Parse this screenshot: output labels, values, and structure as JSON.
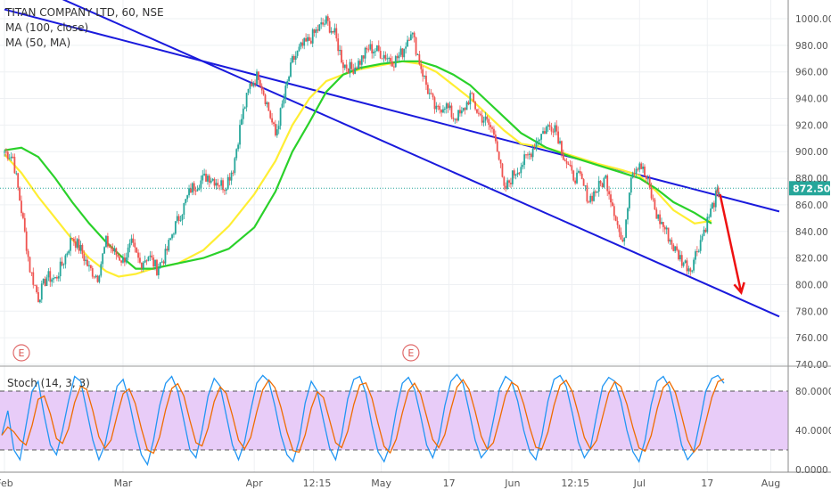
{
  "chart_data": [
    {
      "type": "candlestick",
      "title": "TITAN COMPANY LTD, 60, NSE",
      "indicators": [
        "MA (100, close)",
        "MA (50, MA)"
      ],
      "price_axis": {
        "ticks": [
          "1000.00",
          "980.00",
          "960.00",
          "940.00",
          "920.00",
          "900.00",
          "880.00",
          "860.00",
          "840.00",
          "820.00",
          "800.00",
          "780.00",
          "760.00",
          "740.00"
        ],
        "range": [
          736,
          1010
        ]
      },
      "time_axis": {
        "ticks": [
          "Feb",
          "Mar",
          "Apr",
          "12:15",
          "May",
          "17",
          "Jun",
          "12:15",
          "Jul",
          "17",
          "Aug"
        ]
      },
      "last_price_label": "872.50",
      "events": [
        "E",
        "E"
      ],
      "colors": {
        "up": "#26a69a",
        "down": "#ef5350",
        "ma100": "#2ad12a",
        "ma50": "#ffee33",
        "channel": "#1a1adc",
        "arrow": "#ee1111",
        "price_line": "#26a69a"
      },
      "price_path": [
        [
          "2019-02-01",
          900
        ],
        [
          "2019-02-03",
          896
        ],
        [
          "2019-02-05",
          856
        ],
        [
          "2019-02-07",
          812
        ],
        [
          "2019-02-09",
          790
        ],
        [
          "2019-02-11",
          806
        ],
        [
          "2019-02-13",
          804
        ],
        [
          "2019-02-15",
          818
        ],
        [
          "2019-02-17",
          836
        ],
        [
          "2019-02-19",
          826
        ],
        [
          "2019-02-21",
          812
        ],
        [
          "2019-02-23",
          806
        ],
        [
          "2019-02-25",
          832
        ],
        [
          "2019-02-27",
          824
        ],
        [
          "2019-03-01",
          818
        ],
        [
          "2019-03-03",
          830
        ],
        [
          "2019-03-05",
          816
        ],
        [
          "2019-03-07",
          822
        ],
        [
          "2019-03-09",
          812
        ],
        [
          "2019-03-11",
          822
        ],
        [
          "2019-03-13",
          842
        ],
        [
          "2019-03-15",
          856
        ],
        [
          "2019-03-17",
          872
        ],
        [
          "2019-03-19",
          877
        ],
        [
          "2019-03-21",
          882
        ],
        [
          "2019-03-23",
          878
        ],
        [
          "2019-03-25",
          874
        ],
        [
          "2019-03-27",
          888
        ],
        [
          "2019-03-29",
          925
        ],
        [
          "2019-03-31",
          950
        ],
        [
          "2019-04-02",
          958
        ],
        [
          "2019-04-04",
          936
        ],
        [
          "2019-04-06",
          912
        ],
        [
          "2019-04-08",
          940
        ],
        [
          "2019-04-10",
          968
        ],
        [
          "2019-04-12",
          978
        ],
        [
          "2019-04-14",
          984
        ],
        [
          "2019-04-16",
          992
        ],
        [
          "2019-04-18",
          998
        ],
        [
          "2019-04-20",
          988
        ],
        [
          "2019-04-22",
          966
        ],
        [
          "2019-04-24",
          962
        ],
        [
          "2019-04-26",
          968
        ],
        [
          "2019-04-28",
          978
        ],
        [
          "2019-04-30",
          976
        ],
        [
          "2019-05-02",
          972
        ],
        [
          "2019-05-04",
          968
        ],
        [
          "2019-05-06",
          975
        ],
        [
          "2019-05-08",
          992
        ],
        [
          "2019-05-10",
          968
        ],
        [
          "2019-05-12",
          946
        ],
        [
          "2019-05-14",
          930
        ],
        [
          "2019-05-16",
          936
        ],
        [
          "2019-05-18",
          926
        ],
        [
          "2019-05-20",
          928
        ],
        [
          "2019-05-22",
          942
        ],
        [
          "2019-05-24",
          928
        ],
        [
          "2019-05-26",
          922
        ],
        [
          "2019-05-28",
          912
        ],
        [
          "2019-05-30",
          870
        ],
        [
          "2019-06-01",
          882
        ],
        [
          "2019-06-03",
          890
        ],
        [
          "2019-06-05",
          898
        ],
        [
          "2019-06-07",
          910
        ],
        [
          "2019-06-09",
          918
        ],
        [
          "2019-06-11",
          920
        ],
        [
          "2019-06-13",
          898
        ],
        [
          "2019-06-15",
          882
        ],
        [
          "2019-06-17",
          880
        ],
        [
          "2019-06-19",
          864
        ],
        [
          "2019-06-21",
          872
        ],
        [
          "2019-06-23",
          880
        ],
        [
          "2019-06-25",
          856
        ],
        [
          "2019-06-27",
          828
        ],
        [
          "2019-06-29",
          884
        ],
        [
          "2019-07-01",
          892
        ],
        [
          "2019-07-03",
          876
        ],
        [
          "2019-07-05",
          852
        ],
        [
          "2019-07-07",
          842
        ],
        [
          "2019-07-09",
          828
        ],
        [
          "2019-07-11",
          818
        ],
        [
          "2019-07-13",
          812
        ],
        [
          "2019-07-15",
          830
        ],
        [
          "2019-07-17",
          848
        ],
        [
          "2019-07-19",
          866
        ],
        [
          "2019-07-20",
          872.5
        ]
      ],
      "ma100": [
        [
          "2019-02-01",
          901
        ],
        [
          "2019-02-05",
          903
        ],
        [
          "2019-02-09",
          896
        ],
        [
          "2019-02-13",
          880
        ],
        [
          "2019-02-17",
          862
        ],
        [
          "2019-02-21",
          846
        ],
        [
          "2019-02-25",
          832
        ],
        [
          "2019-03-01",
          820
        ],
        [
          "2019-03-04",
          812
        ],
        [
          "2019-03-08",
          812
        ],
        [
          "2019-03-14",
          816
        ],
        [
          "2019-03-20",
          820
        ],
        [
          "2019-03-26",
          827
        ],
        [
          "2019-04-01",
          843
        ],
        [
          "2019-04-06",
          870
        ],
        [
          "2019-04-10",
          900
        ],
        [
          "2019-04-14",
          922
        ],
        [
          "2019-04-18",
          945
        ],
        [
          "2019-04-22",
          958
        ],
        [
          "2019-04-26",
          963
        ],
        [
          "2019-05-01",
          966
        ],
        [
          "2019-05-06",
          968
        ],
        [
          "2019-05-10",
          968
        ],
        [
          "2019-05-14",
          964
        ],
        [
          "2019-05-18",
          958
        ],
        [
          "2019-05-22",
          950
        ],
        [
          "2019-05-26",
          938
        ],
        [
          "2019-05-30",
          926
        ],
        [
          "2019-06-03",
          914
        ],
        [
          "2019-06-09",
          903
        ],
        [
          "2019-06-15",
          896
        ],
        [
          "2019-06-21",
          890
        ],
        [
          "2019-06-27",
          884
        ],
        [
          "2019-07-01",
          880
        ],
        [
          "2019-07-05",
          872
        ],
        [
          "2019-07-09",
          862
        ],
        [
          "2019-07-14",
          854
        ],
        [
          "2019-07-18",
          846
        ]
      ],
      "ma50": [
        [
          "2019-02-01",
          898
        ],
        [
          "2019-02-05",
          884
        ],
        [
          "2019-02-09",
          866
        ],
        [
          "2019-02-13",
          850
        ],
        [
          "2019-02-17",
          834
        ],
        [
          "2019-02-21",
          820
        ],
        [
          "2019-02-25",
          810
        ],
        [
          "2019-02-28",
          806
        ],
        [
          "2019-03-04",
          808
        ],
        [
          "2019-03-08",
          812
        ],
        [
          "2019-03-14",
          816
        ],
        [
          "2019-03-20",
          826
        ],
        [
          "2019-03-26",
          844
        ],
        [
          "2019-04-01",
          868
        ],
        [
          "2019-04-06",
          893
        ],
        [
          "2019-04-10",
          920
        ],
        [
          "2019-04-14",
          940
        ],
        [
          "2019-04-18",
          953
        ],
        [
          "2019-04-22",
          958
        ],
        [
          "2019-04-26",
          962
        ],
        [
          "2019-05-01",
          965
        ],
        [
          "2019-05-06",
          968
        ],
        [
          "2019-05-10",
          966
        ],
        [
          "2019-05-14",
          960
        ],
        [
          "2019-05-18",
          950
        ],
        [
          "2019-05-22",
          940
        ],
        [
          "2019-05-26",
          928
        ],
        [
          "2019-05-30",
          916
        ],
        [
          "2019-06-03",
          906
        ],
        [
          "2019-06-09",
          903
        ],
        [
          "2019-06-15",
          897
        ],
        [
          "2019-06-21",
          891
        ],
        [
          "2019-06-27",
          886
        ],
        [
          "2019-07-01",
          882
        ],
        [
          "2019-07-05",
          870
        ],
        [
          "2019-07-09",
          856
        ],
        [
          "2019-07-14",
          846
        ],
        [
          "2019-07-18",
          848
        ]
      ],
      "channel": [
        {
          "from": [
            "2019-02-01",
            1007
          ],
          "to": [
            "2019-08-03",
            855
          ]
        },
        {
          "from": [
            "2019-02-01",
            1034
          ],
          "to": [
            "2019-08-03",
            776
          ]
        }
      ],
      "arrow": {
        "from": [
          "2019-07-20",
          868
        ],
        "to": [
          "2019-07-25",
          794
        ]
      }
    },
    {
      "type": "line",
      "title": "Stoch (14, 3, 3)",
      "y_ticks": [
        "80.0000",
        "40.0000",
        "0.0000"
      ],
      "ylim": [
        0,
        100
      ],
      "band": [
        20,
        80
      ],
      "colors": {
        "band_fill": "#e8ccf8",
        "band_line": "#555555",
        "k": "#2196f3",
        "d": "#ef6c00"
      },
      "k": [
        35,
        60,
        20,
        10,
        45,
        80,
        90,
        55,
        25,
        15,
        40,
        70,
        95,
        90,
        60,
        30,
        10,
        25,
        55,
        85,
        92,
        70,
        40,
        15,
        5,
        30,
        65,
        88,
        95,
        80,
        50,
        20,
        12,
        40,
        75,
        93,
        85,
        55,
        25,
        10,
        28,
        60,
        88,
        96,
        90,
        65,
        35,
        15,
        8,
        30,
        68,
        90,
        80,
        50,
        22,
        10,
        35,
        72,
        92,
        95,
        78,
        45,
        18,
        8,
        25,
        60,
        88,
        94,
        82,
        55,
        25,
        12,
        30,
        65,
        90,
        97,
        88,
        60,
        30,
        12,
        20,
        50,
        82,
        95,
        90,
        70,
        40,
        18,
        10,
        35,
        70,
        92,
        96,
        85,
        58,
        28,
        12,
        22,
        55,
        85,
        94,
        90,
        70,
        40,
        18,
        8,
        30,
        66,
        90,
        95,
        84,
        56,
        25,
        10,
        18,
        48,
        80,
        93,
        96,
        88
      ]
    }
  ]
}
